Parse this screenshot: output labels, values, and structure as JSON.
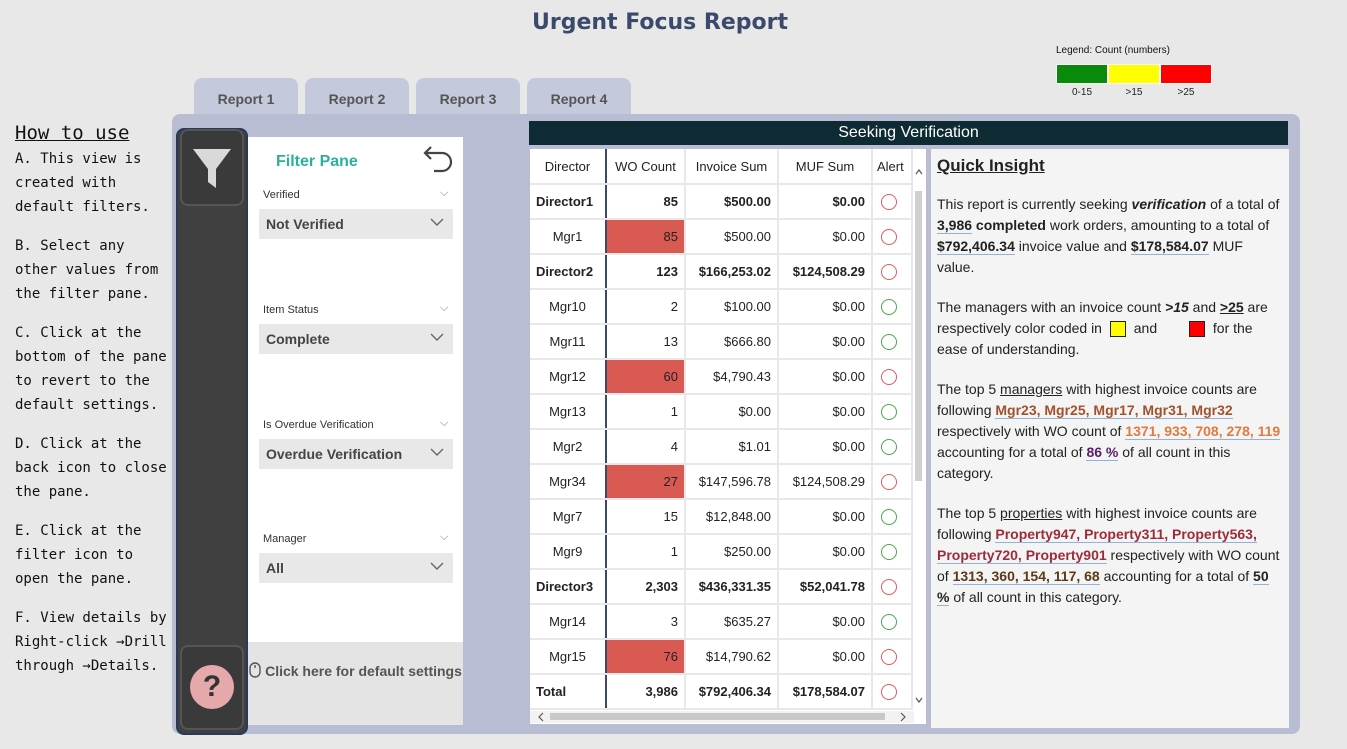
{
  "title": "Urgent Focus Report",
  "legend": {
    "title": "Legend: Count (numbers)",
    "items": [
      {
        "label": "0-15",
        "color": "#0a8a0a"
      },
      {
        "label": ">15",
        "color": "#ffff00"
      },
      {
        "label": ">25",
        "color": "#ff0000"
      }
    ]
  },
  "tabs": [
    "Report 1",
    "Report 2",
    "Report 3",
    "Report 4"
  ],
  "howto": {
    "heading": "How to use",
    "steps": [
      "A. This view is created with default filters.",
      "B. Select any other values from the filter pane.",
      "C. Click at the bottom of the pane to revert to the default settings.",
      "D. Click at the back icon to close the pane.",
      "E. Click at the filter icon to open the pane.",
      "F. View details by Right-click →Drill through →Details."
    ]
  },
  "filter_pane": {
    "title": "Filter Pane",
    "filters": [
      {
        "label": "Verified",
        "value": "Not Verified"
      },
      {
        "label": "Item Status",
        "value": "Complete"
      },
      {
        "label": "Is Overdue Verification",
        "value": "Overdue Verification"
      },
      {
        "label": "Manager",
        "value": "All"
      }
    ],
    "default_button": "Click here for default settings"
  },
  "seeking_header": "Seeking Verification",
  "table": {
    "headers": [
      "Director",
      "WO Count",
      "Invoice Sum",
      "MUF Sum",
      "Alert"
    ],
    "rows": [
      {
        "name": "Director1",
        "wo": "85",
        "inv": "$500.00",
        "muf": "$0.00",
        "type": "director",
        "hl": false,
        "alert": "red"
      },
      {
        "name": "Mgr1",
        "wo": "85",
        "inv": "$500.00",
        "muf": "$0.00",
        "type": "mgr",
        "hl": true,
        "alert": "red"
      },
      {
        "name": "Director2",
        "wo": "123",
        "inv": "$166,253.02",
        "muf": "$124,508.29",
        "type": "director",
        "hl": false,
        "alert": "red"
      },
      {
        "name": "Mgr10",
        "wo": "2",
        "inv": "$100.00",
        "muf": "$0.00",
        "type": "mgr",
        "hl": false,
        "alert": "green"
      },
      {
        "name": "Mgr11",
        "wo": "13",
        "inv": "$666.80",
        "muf": "$0.00",
        "type": "mgr",
        "hl": false,
        "alert": "green"
      },
      {
        "name": "Mgr12",
        "wo": "60",
        "inv": "$4,790.43",
        "muf": "$0.00",
        "type": "mgr",
        "hl": true,
        "alert": "red"
      },
      {
        "name": "Mgr13",
        "wo": "1",
        "inv": "$0.00",
        "muf": "$0.00",
        "type": "mgr",
        "hl": false,
        "alert": "green"
      },
      {
        "name": "Mgr2",
        "wo": "4",
        "inv": "$1.01",
        "muf": "$0.00",
        "type": "mgr",
        "hl": false,
        "alert": "green"
      },
      {
        "name": "Mgr34",
        "wo": "27",
        "inv": "$147,596.78",
        "muf": "$124,508.29",
        "type": "mgr",
        "hl": true,
        "alert": "red"
      },
      {
        "name": "Mgr7",
        "wo": "15",
        "inv": "$12,848.00",
        "muf": "$0.00",
        "type": "mgr",
        "hl": false,
        "alert": "green"
      },
      {
        "name": "Mgr9",
        "wo": "1",
        "inv": "$250.00",
        "muf": "$0.00",
        "type": "mgr",
        "hl": false,
        "alert": "green"
      },
      {
        "name": "Director3",
        "wo": "2,303",
        "inv": "$436,331.35",
        "muf": "$52,041.78",
        "type": "director",
        "hl": false,
        "alert": "red"
      },
      {
        "name": "Mgr14",
        "wo": "3",
        "inv": "$635.27",
        "muf": "$0.00",
        "type": "mgr",
        "hl": false,
        "alert": "green"
      },
      {
        "name": "Mgr15",
        "wo": "76",
        "inv": "$14,790.62",
        "muf": "$0.00",
        "type": "mgr",
        "hl": true,
        "alert": "red"
      },
      {
        "name": "Total",
        "wo": "3,986",
        "inv": "$792,406.34",
        "muf": "$178,584.07",
        "type": "total",
        "hl": false,
        "alert": "red"
      }
    ]
  },
  "insight": {
    "heading": "Quick Insight",
    "p1": {
      "a": "This report is currently seeking ",
      "b": "verification",
      "c": " of a total of ",
      "d": "3,986",
      "e": " completed",
      "f": " work orders, amounting to a total of ",
      "g": "$792,406.34",
      "h": " invoice value and ",
      "i": "$178,584.07",
      "j": " MUF value."
    },
    "p2": {
      "a": "The managers with an invoice count ",
      "b": ">15",
      "c": " and ",
      "d": ">25",
      "e": " are respectively color coded in ",
      "f": " and ",
      "g": " for the ease of understanding.",
      "yellow": "#ffff00",
      "red": "#ff0000"
    },
    "p3": {
      "a": "The top 5 ",
      "b": "managers",
      "c": " with highest invoice counts are following ",
      "d": "Mgr23, Mgr25, Mgr17, Mgr31, Mgr32",
      "e": " respectively with WO count of ",
      "f": "1371, 933, 708, 278, 119",
      "g": " accounting for a total of ",
      "h": "86 %",
      "i": " of all count in this category."
    },
    "p4": {
      "a": "The top 5 ",
      "b": "properties",
      "c": " with highest invoice counts are following ",
      "d": "Property947, Property311, Property563, Property720, Property901",
      "e": " respectively with WO count of ",
      "f": "1313, 360, 154, 117, 68",
      "g": " accounting for a total of ",
      "h": "50 %",
      "i": " of all count in this category."
    }
  }
}
